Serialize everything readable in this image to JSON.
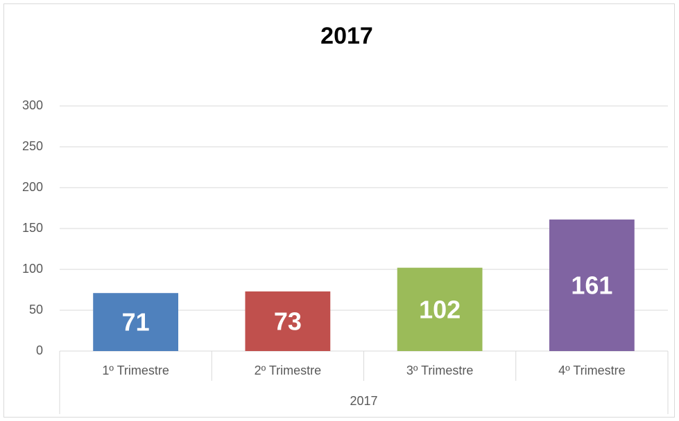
{
  "chart_data": {
    "type": "bar",
    "title": "2017",
    "categories": [
      "1º Trimestre",
      "2º Trimestre",
      "3º Trimestre",
      "4º Trimestre"
    ],
    "group_label": "2017",
    "values": [
      71,
      73,
      102,
      161
    ],
    "colors": [
      "#4f81bd",
      "#c0504d",
      "#9bbb59",
      "#8064a2"
    ],
    "ylim": [
      0,
      300
    ],
    "yticks": [
      0,
      50,
      100,
      150,
      200,
      250,
      300
    ],
    "grid": true
  }
}
